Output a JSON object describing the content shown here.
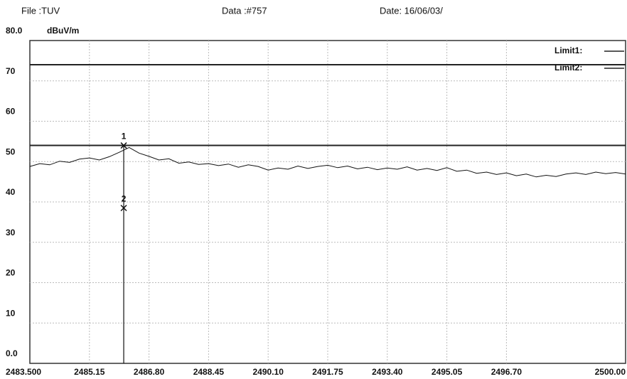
{
  "chart_data": {
    "type": "line",
    "file": "File :TUV",
    "data_no": "Data :#757",
    "date": "Date: 16/06/03/",
    "y_label": "dBuV/m",
    "xlim": [
      2483.5,
      2500.0
    ],
    "ylim": [
      0,
      80
    ],
    "xticks": [
      {
        "value": 2483.5,
        "label": "2483.500"
      },
      2485.15,
      {
        "value": 2486.8,
        "label": "2486.80"
      },
      2488.45,
      {
        "value": 2490.1,
        "label": "2490.10"
      },
      2491.75,
      {
        "value": 2493.4,
        "label": "2493.40"
      },
      2495.05,
      {
        "value": 2496.7,
        "label": "2496.70"
      },
      {
        "value": 2500.0,
        "label": "2500.00"
      }
    ],
    "yticks": [
      {
        "value": 0,
        "label": "0.0"
      },
      10,
      20,
      30,
      40,
      50,
      60,
      70,
      {
        "value": 80,
        "label": "80.0"
      }
    ],
    "grid": true,
    "limits": [
      {
        "name": "Limit1:",
        "value": 74,
        "color": "#222"
      },
      {
        "name": "Limit2:",
        "value": 54,
        "color": "#222"
      }
    ],
    "x": [
      2483.5,
      2483.775,
      2484.05,
      2484.325,
      2484.6,
      2484.875,
      2485.15,
      2485.425,
      2485.7,
      2485.975,
      2486.25,
      2486.525,
      2486.8,
      2487.075,
      2487.35,
      2487.625,
      2487.9,
      2488.175,
      2488.45,
      2488.725,
      2489.0,
      2489.275,
      2489.55,
      2489.825,
      2490.1,
      2490.375,
      2490.65,
      2490.925,
      2491.2,
      2491.475,
      2491.75,
      2492.025,
      2492.3,
      2492.575,
      2492.85,
      2493.125,
      2493.4,
      2493.675,
      2493.95,
      2494.225,
      2494.5,
      2494.775,
      2495.05,
      2495.325,
      2495.6,
      2495.875,
      2496.15,
      2496.425,
      2496.7,
      2496.975,
      2497.25,
      2497.525,
      2497.8,
      2498.075,
      2498.35,
      2498.625,
      2498.9,
      2499.175,
      2499.45,
      2499.725,
      2500.0
    ],
    "series": [
      {
        "color": "#111",
        "values": [
          48.8,
          49.5,
          49.2,
          50.1,
          49.8,
          50.6,
          50.9,
          50.4,
          51.2,
          52.3,
          53.5,
          52.1,
          51.3,
          50.4,
          50.7,
          49.6,
          49.9,
          49.3,
          49.5,
          49.0,
          49.4,
          48.6,
          49.2,
          48.8,
          47.9,
          48.4,
          48.1,
          48.9,
          48.3,
          48.8,
          49.1,
          48.5,
          48.9,
          48.2,
          48.6,
          48.0,
          48.4,
          48.1,
          48.7,
          47.9,
          48.3,
          47.8,
          48.5,
          47.6,
          47.9,
          47.1,
          47.4,
          46.8,
          47.2,
          46.5,
          46.9,
          46.2,
          46.6,
          46.3,
          46.9,
          47.2,
          46.8,
          47.4,
          47.0,
          47.3,
          46.9
        ]
      }
    ],
    "markers": [
      {
        "label": "1",
        "x": 2486.1,
        "y": 54
      },
      {
        "label": "2",
        "x": 2486.1,
        "y": 38.5
      }
    ]
  }
}
